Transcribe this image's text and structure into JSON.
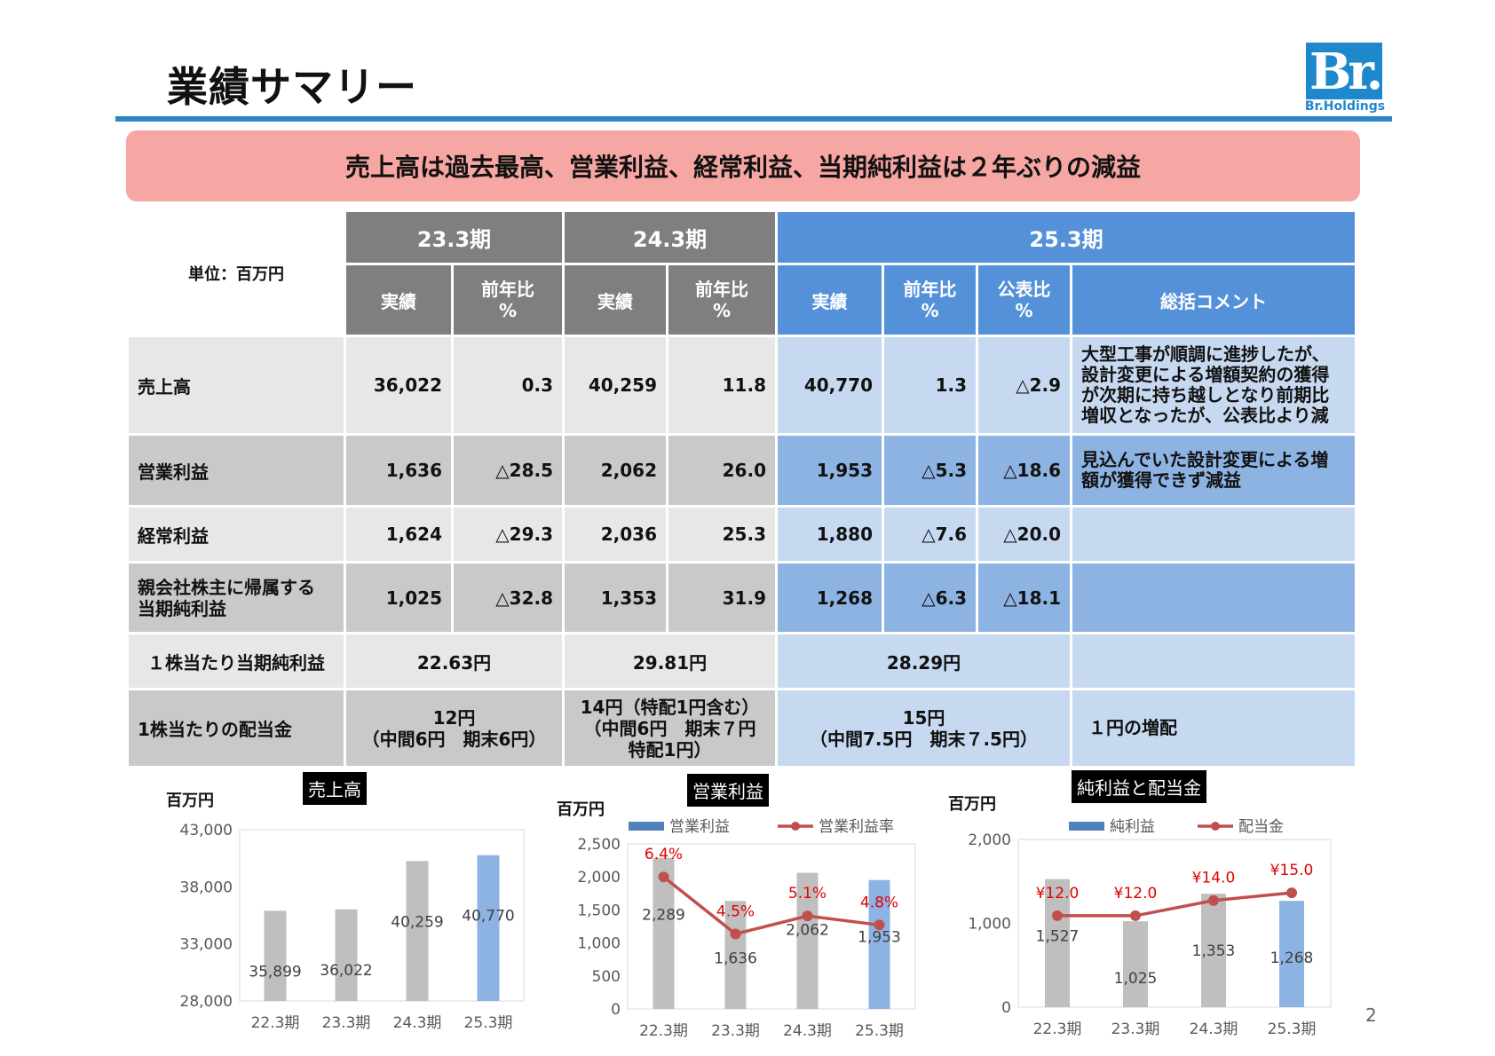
{
  "page": {
    "title": "業績サマリー",
    "headline": "売上高は過去最高、営業利益、経常利益、当期純利益は２年ぶりの減益",
    "page_number": "2",
    "logo": {
      "letters": "Br.",
      "text": "Br.Holdings"
    }
  },
  "table": {
    "unit_label": "単位：百万円",
    "periods": [
      "23.3期",
      "24.3期",
      "25.3期"
    ],
    "sub_headers": {
      "actual": "実績",
      "yoy": "前年比\n%",
      "vs_forecast": "公表比\n%",
      "comment": "総括コメント"
    },
    "rows": [
      {
        "label": "売上高",
        "p23_actual": "36,022",
        "p23_yoy": "0.3",
        "p24_actual": "40,259",
        "p24_yoy": "11.8",
        "p25_actual": "40,770",
        "p25_yoy": "1.3",
        "p25_forecast": "△2.9",
        "comment": "大型工事が順調に進捗したが、設計変更による増額契約の獲得が次期に持ち越しとなり前期比増収となったが、公表比より減"
      },
      {
        "label": "営業利益",
        "p23_actual": "1,636",
        "p23_yoy": "△28.5",
        "p24_actual": "2,062",
        "p24_yoy": "26.0",
        "p25_actual": "1,953",
        "p25_yoy": "△5.3",
        "p25_forecast": "△18.6",
        "comment": "見込んでいた設計変更による増額が獲得できず減益"
      },
      {
        "label": "経常利益",
        "p23_actual": "1,624",
        "p23_yoy": "△29.3",
        "p24_actual": "2,036",
        "p24_yoy": "25.3",
        "p25_actual": "1,880",
        "p25_yoy": "△7.6",
        "p25_forecast": "△20.0",
        "comment": ""
      },
      {
        "label": "親会社株主に帰属する\n当期純利益",
        "p23_actual": "1,025",
        "p23_yoy": "△32.8",
        "p24_actual": "1,353",
        "p24_yoy": "31.9",
        "p25_actual": "1,268",
        "p25_yoy": "△6.3",
        "p25_forecast": "△18.1",
        "comment": ""
      }
    ],
    "eps": {
      "label": "１株当たり当期純利益",
      "p23": "22.63円",
      "p24": "29.81円",
      "p25": "28.29円",
      "comment": ""
    },
    "dividend": {
      "label": "1株当たりの配当金",
      "p23": "12円\n（中間6円　期末6円）",
      "p24": "14円（特配1円含む）\n（中間6円　期末７円\n特配1円）",
      "p25": "15円\n（中間7.5円　期末７.5円）",
      "comment": "１円の増配"
    }
  },
  "colors": {
    "bar_past": "#bfbfbf",
    "bar_current": "#8db3e2",
    "line": "#c0504d",
    "label_red": "#e00000",
    "header_gray": "#7f7f7f",
    "header_blue": "#5591d8"
  },
  "chart_data": [
    {
      "type": "bar",
      "title": "売上高",
      "unit": "百万円",
      "categories": [
        "22.3期",
        "23.3期",
        "24.3期",
        "25.3期"
      ],
      "values": [
        35899,
        36022,
        40259,
        40770
      ],
      "value_labels": [
        "35,899",
        "36,022",
        "40,259",
        "40,770"
      ],
      "ylim": [
        28000,
        43000
      ],
      "yticks": [
        28000,
        33000,
        38000,
        43000
      ],
      "ytick_labels": [
        "28,000",
        "33,000",
        "38,000",
        "43,000"
      ],
      "grid": false
    },
    {
      "type": "bar",
      "title": "営業利益",
      "unit": "百万円",
      "categories": [
        "22.3期",
        "23.3期",
        "24.3期",
        "25.3期"
      ],
      "series": [
        {
          "name": "営業利益",
          "values": [
            2289,
            1636,
            2062,
            1953
          ],
          "labels": [
            "2,289",
            "1,636",
            "2,062",
            "1,953"
          ]
        },
        {
          "name": "営業利益率",
          "type": "line",
          "values": [
            6.4,
            4.5,
            5.1,
            4.8
          ],
          "labels": [
            "6.4%",
            "4.5%",
            "5.1%",
            "4.8%"
          ]
        }
      ],
      "ylim": [
        0,
        2500
      ],
      "yticks": [
        0,
        500,
        1000,
        1500,
        2000,
        2500
      ],
      "ytick_labels": [
        "0",
        "500",
        "1,000",
        "1,500",
        "2,000",
        "2,500"
      ],
      "legend": "top"
    },
    {
      "type": "bar",
      "title": "純利益と配当金",
      "unit": "百万円",
      "categories": [
        "22.3期",
        "23.3期",
        "24.3期",
        "25.3期"
      ],
      "series": [
        {
          "name": "純利益",
          "values": [
            1527,
            1025,
            1353,
            1268
          ],
          "labels": [
            "1,527",
            "1,025",
            "1,353",
            "1,268"
          ]
        },
        {
          "name": "配当金",
          "type": "line",
          "values": [
            12.0,
            12.0,
            14.0,
            15.0
          ],
          "labels": [
            "¥12.0",
            "¥12.0",
            "¥14.0",
            "¥15.0"
          ]
        }
      ],
      "ylim": [
        0,
        2000
      ],
      "yticks": [
        0,
        1000,
        2000
      ],
      "ytick_labels": [
        "0",
        "1,000",
        "2,000"
      ],
      "legend": "top"
    }
  ]
}
